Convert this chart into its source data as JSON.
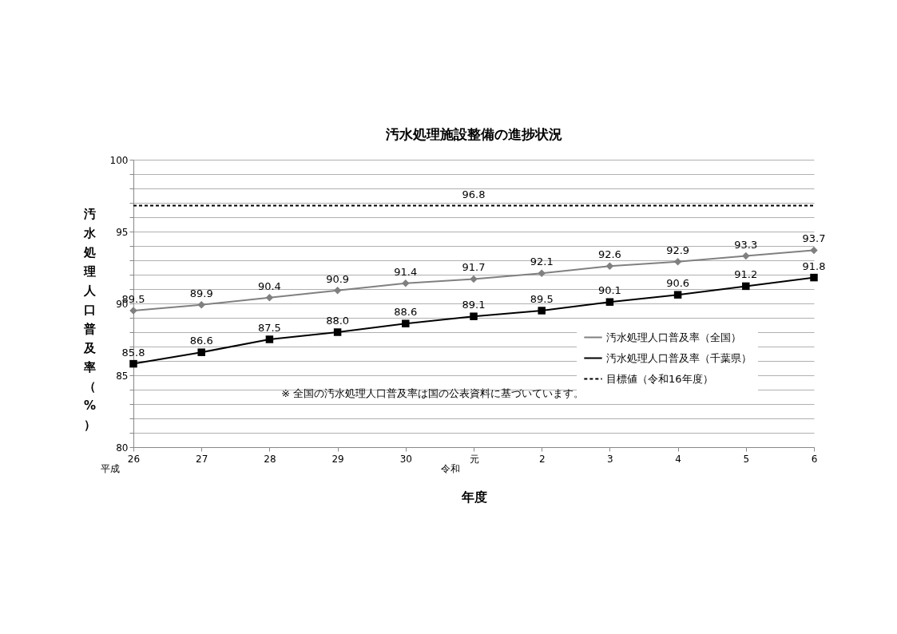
{
  "chart_data": {
    "type": "line",
    "title": "汚水処理施設整備の進捗状況",
    "xlabel": "年度",
    "ylabel": "汚水処理人口普及率（%）",
    "categories": [
      "26",
      "27",
      "28",
      "29",
      "30",
      "元",
      "2",
      "3",
      "4",
      "5",
      "6"
    ],
    "ylim": [
      80,
      100
    ],
    "yticks": [
      80,
      {
        "value": 81,
        "label": null
      },
      {
        "value": 82,
        "label": null
      },
      {
        "value": 83,
        "label": null
      },
      {
        "value": 84,
        "label": null
      },
      85,
      {
        "value": 86,
        "label": null
      },
      {
        "value": 87,
        "label": null
      },
      {
        "value": 88,
        "label": null
      },
      {
        "value": 89,
        "label": null
      },
      90,
      {
        "value": 91,
        "label": null
      },
      {
        "value": 92,
        "label": null
      },
      {
        "value": 93,
        "label": null
      },
      {
        "value": 94,
        "label": null
      },
      95,
      {
        "value": 96,
        "label": null
      },
      {
        "value": 97,
        "label": null
      },
      {
        "value": 98,
        "label": null
      },
      {
        "value": 99,
        "label": null
      },
      100
    ],
    "grid": "y",
    "legend": "bottom right",
    "series": [
      {
        "name": "汚水処理人口普及率（全国）",
        "color": "#808080",
        "marker": "diamond",
        "line_style": "solid",
        "values": [
          89.5,
          89.9,
          90.4,
          90.9,
          91.4,
          91.7,
          92.1,
          92.6,
          92.9,
          93.3,
          93.7
        ],
        "value_labels": [
          "89.5",
          "89.9",
          "90.4",
          "90.9",
          "91.4",
          "91.7",
          "92.1",
          "92.6",
          "92.9",
          "93.3",
          "93.7"
        ]
      },
      {
        "name": "汚水処理人口普及率（千葉県）",
        "color": "#000000",
        "marker": "square",
        "line_style": "solid",
        "values": [
          85.8,
          86.6,
          87.5,
          88.0,
          88.6,
          89.1,
          89.5,
          90.1,
          90.6,
          91.2,
          91.8
        ],
        "value_labels": [
          "85.8",
          "86.6",
          "87.5",
          "88.0",
          "88.6",
          "89.1",
          "89.5",
          "90.1",
          "90.6",
          "91.2",
          "91.8"
        ]
      },
      {
        "name": "目標値（令和16年度）",
        "color": "#000000",
        "marker": "none",
        "line_style": "dashed",
        "values": [
          96.8,
          96.8,
          96.8,
          96.8,
          96.8,
          96.8,
          96.8,
          96.8,
          96.8,
          96.8,
          96.8
        ],
        "value_labels": [
          null,
          null,
          null,
          null,
          null,
          "96.8",
          null,
          null,
          null,
          null,
          null
        ]
      }
    ],
    "annotations": [
      "平成",
      "令和",
      "※ 全国の汚水処理人口普及率は国の公表資料に基づいています。"
    ]
  }
}
